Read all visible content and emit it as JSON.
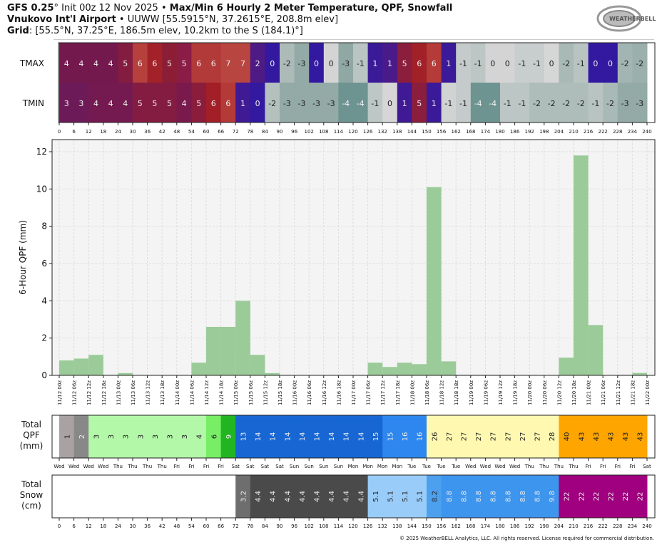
{
  "header": {
    "model": "GFS 0.25",
    "deg": "°",
    "init": " Init 00z 12 Nov 2025 • ",
    "title": "Max/Min 6 Hourly 2 Meter Temperature, QPF, Snowfall",
    "station": "Vnukovo Int'l Airport",
    "station_info": " • UUWW [55.5915°N, 37.2615°E, 208.8m elev]",
    "grid_label": "Grid",
    "grid_info": ": [55.5°N, 37.25°E, 186.5m elev, 10.2km to the S (184.1)°]",
    "logo_text": "WeatherBELL Analytics LLC"
  },
  "footer": {
    "copyright": "© 2025 WeatherBELL Analytics, LLC. All rights reserved. License required for commercial distribution."
  },
  "chart_data": {
    "type": "bar",
    "forecast_hours": [
      0,
      6,
      12,
      18,
      24,
      30,
      36,
      42,
      48,
      54,
      60,
      66,
      72,
      78,
      84,
      90,
      96,
      102,
      108,
      114,
      120,
      126,
      132,
      138,
      144,
      150,
      156,
      162,
      168,
      174,
      180,
      186,
      192,
      198,
      204,
      210,
      216,
      222,
      228,
      234,
      240
    ],
    "temperature": {
      "row_labels": [
        "TMAX",
        "TMIN"
      ],
      "tmax": [
        4,
        4,
        4,
        4,
        5,
        6,
        6,
        5,
        5,
        6,
        6,
        7,
        7,
        2,
        0,
        -2,
        -3,
        0,
        0,
        -3,
        -1,
        1,
        1,
        5,
        6,
        6,
        1,
        -1,
        -1,
        0,
        0,
        -1,
        -1,
        0,
        -2,
        -1,
        0,
        0,
        -2,
        -2
      ],
      "tmax_colors": [
        "#74194d",
        "#74194d",
        "#74194d",
        "#74194d",
        "#841c40",
        "#b5403c",
        "#a32129",
        "#8b1e35",
        "#8a1c45",
        "#b23b39",
        "#b23b39",
        "#b8453f",
        "#b8453f",
        "#4e1a84",
        "#3219a0",
        "#adbbb8",
        "#94aaa6",
        "#3219a0",
        "#d4d4d4",
        "#8fa8a3",
        "#bac5c3",
        "#3b1a98",
        "#4a1a8a",
        "#8b1e3c",
        "#a22028",
        "#b43b38",
        "#3a1a98",
        "#c5cbca",
        "#bcc6c4",
        "#d4d4d4",
        "#d4d4d4",
        "#c8cecd",
        "#c8cecd",
        "#d6d6d6",
        "#a9b9b6",
        "#b9c4c2",
        "#3219a0",
        "#3219a0",
        "#a3b5b2",
        "#9bb0ad"
      ],
      "tmin": [
        3,
        3,
        4,
        4,
        4,
        5,
        5,
        5,
        4,
        5,
        6,
        6,
        1,
        0,
        -2,
        -3,
        -3,
        -3,
        -3,
        -4,
        -4,
        -1,
        0,
        1,
        5,
        1,
        -1,
        -1,
        -4,
        -4,
        -1,
        -1,
        -2,
        -2,
        -2,
        -2,
        -1,
        -2,
        -3,
        -3
      ],
      "tmin_colors": [
        "#6c1b58",
        "#6c1b58",
        "#741a50",
        "#741a50",
        "#741a50",
        "#841c42",
        "#841c42",
        "#841c42",
        "#7a1a4c",
        "#8a1c3c",
        "#a21f27",
        "#b43a38",
        "#3f1a94",
        "#3219a0",
        "#b3c0be",
        "#93aaa6",
        "#93aaa6",
        "#93aaa6",
        "#93aaa6",
        "#6e9491",
        "#6e9491",
        "#bdc7c5",
        "#d6d6d6",
        "#3f1a94",
        "#8b1e3c",
        "#3a1a98",
        "#cfd3d2",
        "#c5cbca",
        "#6e9491",
        "#6e9491",
        "#bcc6c4",
        "#bcc6c4",
        "#aebcba",
        "#aebcba",
        "#aebcba",
        "#aebcba",
        "#b9c4c2",
        "#a9b9b6",
        "#93aaa6",
        "#93aaa6"
      ]
    },
    "qpf": {
      "ylabel": "6-Hour QPF (mm)",
      "ylim": [
        0,
        12.65
      ],
      "yticks": [
        0,
        2,
        4,
        6,
        8,
        10,
        12
      ],
      "bar_color": "#9bcb98",
      "values": [
        0.8,
        0.9,
        1.1,
        0.03,
        0.12,
        0,
        0,
        0,
        0,
        0.68,
        2.6,
        2.6,
        4.0,
        1.1,
        0.12,
        0,
        0,
        0,
        0,
        0,
        0.02,
        0.68,
        0.45,
        0.68,
        0.6,
        10.1,
        0.75,
        0.03,
        0.03,
        0.03,
        0.03,
        0,
        0,
        0,
        0.95,
        11.8,
        2.7,
        0,
        0.03,
        0.13
      ],
      "x_tick_labels": [
        "11/12 00z",
        "11/12 06z",
        "11/12 12z",
        "11/12 18z",
        "11/13 00z",
        "11/13 06z",
        "11/13 12z",
        "11/13 18z",
        "11/14 00z",
        "11/14 06z",
        "11/14 12z",
        "11/14 18z",
        "11/15 00z",
        "11/15 06z",
        "11/15 12z",
        "11/15 18z",
        "11/16 00z",
        "11/16 06z",
        "11/16 12z",
        "11/16 18z",
        "11/17 00z",
        "11/17 06z",
        "11/17 12z",
        "11/17 18z",
        "11/18 00z",
        "11/18 06z",
        "11/18 12z",
        "11/18 18z",
        "11/19 00z",
        "11/19 06z",
        "11/19 12z",
        "11/19 18z",
        "11/20 00z",
        "11/20 06z",
        "11/20 12z",
        "11/20 18z",
        "11/21 00z",
        "11/21 06z",
        "11/21 12z",
        "11/21 18z",
        "11/22 00z"
      ]
    },
    "total_qpf": {
      "label": [
        "Total",
        "QPF",
        "(mm)"
      ],
      "values": [
        "1",
        "2",
        "3",
        "3",
        "3",
        "3",
        "3",
        "3",
        "3",
        "4",
        "6",
        "9",
        "13",
        "14",
        "14",
        "14",
        "14",
        "14",
        "14",
        "14",
        "14",
        "15",
        "15",
        "16",
        "16",
        "26",
        "27",
        "27",
        "27",
        "27",
        "27",
        "27",
        "27",
        "28",
        "40",
        "43",
        "43",
        "43",
        "43",
        "43"
      ],
      "colors": [
        "#aaa2a2",
        "#888888",
        "#b3f7a8",
        "#b3f7a8",
        "#b3f7a8",
        "#b3f7a8",
        "#b3f7a8",
        "#b3f7a8",
        "#b3f7a8",
        "#b3f7a8",
        "#77ee66",
        "#22b522",
        "#1766d4",
        "#1766d4",
        "#1766d4",
        "#1766d4",
        "#1766d4",
        "#1766d4",
        "#1766d4",
        "#1766d4",
        "#1766d4",
        "#1766d4",
        "#2d87ee",
        "#2d87ee",
        "#2d87ee",
        "#fff8b0",
        "#fff8b0",
        "#fff8b0",
        "#fff8b0",
        "#fff8b0",
        "#fff8b0",
        "#fff8b0",
        "#fff8b0",
        "#fff8b0",
        "#ffa500",
        "#ffa500",
        "#ffa500",
        "#ffa500",
        "#ffa500",
        "#ffa500"
      ],
      "day_labels": [
        "Wed",
        "Wed",
        "Wed",
        "Wed",
        "Thu",
        "Thu",
        "Thu",
        "Thu",
        "Fri",
        "Fri",
        "Fri",
        "Fri",
        "Sat",
        "Sat",
        "Sat",
        "Sat",
        "Sun",
        "Sun",
        "Sun",
        "Sun",
        "Mon",
        "Mon",
        "Mon",
        "Mon",
        "Tue",
        "Tue",
        "Tue",
        "Tue",
        "Wed",
        "Wed",
        "Wed",
        "Wed",
        "Thu",
        "Thu",
        "Thu",
        "Thu",
        "Fri",
        "Fri",
        "Fri",
        "Fri",
        "Sat"
      ]
    },
    "total_snow": {
      "label": [
        "Total",
        "Snow",
        "(cm)"
      ],
      "values": [
        "",
        "",
        "",
        "",
        "",
        "",
        "",
        "",
        "",
        "",
        "",
        "",
        "3.2",
        "4.4",
        "4.4",
        "4.4",
        "4.4",
        "4.4",
        "4.4",
        "4.4",
        "4.4",
        "5.1",
        "5.1",
        "5.1",
        "5.1",
        "8.2",
        "8.8",
        "8.8",
        "8.8",
        "8.8",
        "8.8",
        "8.8",
        "8.8",
        "9.8",
        "22",
        "22",
        "22",
        "22",
        "22",
        "22"
      ],
      "colors": [
        "#ffffff",
        "#ffffff",
        "#ffffff",
        "#ffffff",
        "#ffffff",
        "#ffffff",
        "#ffffff",
        "#ffffff",
        "#ffffff",
        "#ffffff",
        "#ffffff",
        "#ffffff",
        "#6e6e6e",
        "#4a4a4a",
        "#4a4a4a",
        "#4a4a4a",
        "#4a4a4a",
        "#4a4a4a",
        "#4a4a4a",
        "#4a4a4a",
        "#4a4a4a",
        "#99ccf8",
        "#99ccf8",
        "#99ccf8",
        "#99ccf8",
        "#4da0ee",
        "#3d95ee",
        "#3d95ee",
        "#3d95ee",
        "#3d95ee",
        "#3d95ee",
        "#3d95ee",
        "#3d95ee",
        "#3d95ee",
        "#a0007f",
        "#a0007f",
        "#a0007f",
        "#a0007f",
        "#a0007f",
        "#a0007f"
      ]
    }
  }
}
